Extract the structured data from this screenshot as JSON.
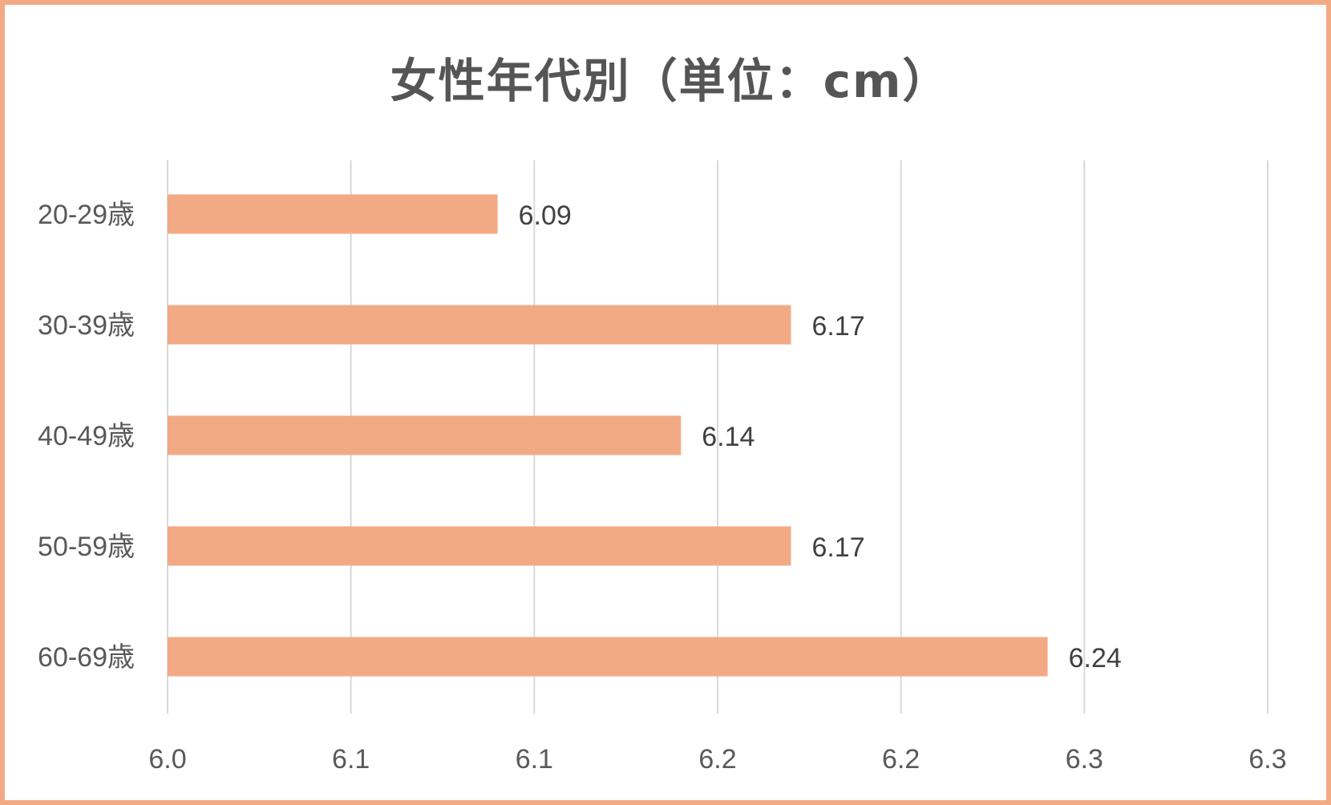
{
  "chart_data": {
    "type": "bar",
    "orientation": "horizontal",
    "title": "女性年代別（単位：cm）",
    "categories": [
      "20-29歳",
      "30-39歳",
      "40-49歳",
      "50-59歳",
      "60-69歳"
    ],
    "values": [
      6.09,
      6.17,
      6.14,
      6.17,
      6.24
    ],
    "data_labels": [
      "6.09",
      "6.17",
      "6.14",
      "6.17",
      "6.24"
    ],
    "x_ticks": [
      6.0,
      6.05,
      6.1,
      6.15,
      6.2,
      6.25,
      6.3
    ],
    "x_tick_labels": [
      "6.0",
      "6.1",
      "6.1",
      "6.2",
      "6.2",
      "6.3",
      "6.3"
    ],
    "xlim": [
      6.0,
      6.3
    ],
    "xlabel": "",
    "ylabel": "",
    "grid": true,
    "legend": "none",
    "bar_color": "#f2aa84",
    "frame_color": "#f2aa84"
  }
}
